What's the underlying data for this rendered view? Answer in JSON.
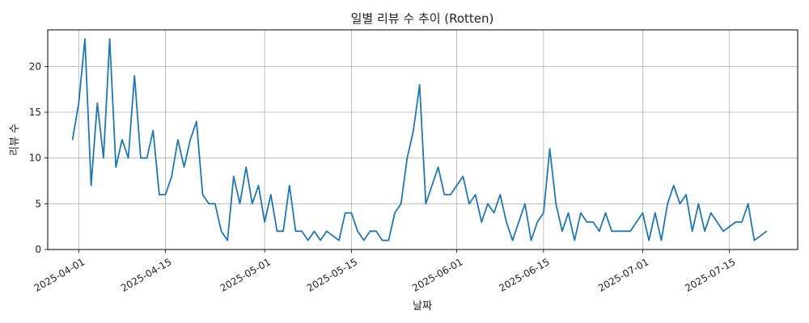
{
  "chart_data": {
    "type": "line",
    "title": "일별 리뷰 수 추이 (Rotten)",
    "xlabel": "날짜",
    "ylabel": "리뷰 수",
    "grid": true,
    "line_color": "#1f77b4",
    "x_ticks": [
      "2025-04-01",
      "2025-04-15",
      "2025-05-01",
      "2025-05-15",
      "2025-06-01",
      "2025-06-15",
      "2025-07-01",
      "2025-07-15"
    ],
    "y_ticks": [
      0,
      5,
      10,
      15,
      20
    ],
    "xlim": [
      "2025-03-27",
      "2025-07-26"
    ],
    "ylim": [
      0,
      24
    ],
    "series": [
      {
        "name": "",
        "points": [
          [
            "2025-03-31",
            12
          ],
          [
            "2025-04-01",
            16
          ],
          [
            "2025-04-02",
            23
          ],
          [
            "2025-04-03",
            7
          ],
          [
            "2025-04-04",
            16
          ],
          [
            "2025-04-05",
            10
          ],
          [
            "2025-04-06",
            23
          ],
          [
            "2025-04-07",
            9
          ],
          [
            "2025-04-08",
            12
          ],
          [
            "2025-04-09",
            10
          ],
          [
            "2025-04-10",
            19
          ],
          [
            "2025-04-11",
            10
          ],
          [
            "2025-04-12",
            10
          ],
          [
            "2025-04-13",
            13
          ],
          [
            "2025-04-14",
            6
          ],
          [
            "2025-04-15",
            6
          ],
          [
            "2025-04-16",
            8
          ],
          [
            "2025-04-17",
            12
          ],
          [
            "2025-04-18",
            9
          ],
          [
            "2025-04-19",
            12
          ],
          [
            "2025-04-20",
            14
          ],
          [
            "2025-04-21",
            6
          ],
          [
            "2025-04-22",
            5
          ],
          [
            "2025-04-23",
            5
          ],
          [
            "2025-04-24",
            2
          ],
          [
            "2025-04-25",
            1
          ],
          [
            "2025-04-26",
            8
          ],
          [
            "2025-04-27",
            5
          ],
          [
            "2025-04-28",
            9
          ],
          [
            "2025-04-29",
            5
          ],
          [
            "2025-04-30",
            7
          ],
          [
            "2025-05-01",
            3
          ],
          [
            "2025-05-02",
            6
          ],
          [
            "2025-05-03",
            2
          ],
          [
            "2025-05-04",
            2
          ],
          [
            "2025-05-05",
            7
          ],
          [
            "2025-05-06",
            2
          ],
          [
            "2025-05-07",
            2
          ],
          [
            "2025-05-08",
            1
          ],
          [
            "2025-05-09",
            2
          ],
          [
            "2025-05-10",
            1
          ],
          [
            "2025-05-11",
            2
          ],
          [
            "2025-05-13",
            1
          ],
          [
            "2025-05-14",
            4
          ],
          [
            "2025-05-15",
            4
          ],
          [
            "2025-05-16",
            2
          ],
          [
            "2025-05-17",
            1
          ],
          [
            "2025-05-18",
            2
          ],
          [
            "2025-05-19",
            2
          ],
          [
            "2025-05-20",
            1
          ],
          [
            "2025-05-21",
            1
          ],
          [
            "2025-05-22",
            4
          ],
          [
            "2025-05-23",
            5
          ],
          [
            "2025-05-24",
            10
          ],
          [
            "2025-05-25",
            13
          ],
          [
            "2025-05-26",
            18
          ],
          [
            "2025-05-27",
            5
          ],
          [
            "2025-05-29",
            9
          ],
          [
            "2025-05-30",
            6
          ],
          [
            "2025-05-31",
            6
          ],
          [
            "2025-06-02",
            8
          ],
          [
            "2025-06-03",
            5
          ],
          [
            "2025-06-04",
            6
          ],
          [
            "2025-06-05",
            3
          ],
          [
            "2025-06-06",
            5
          ],
          [
            "2025-06-07",
            4
          ],
          [
            "2025-06-08",
            6
          ],
          [
            "2025-06-09",
            3
          ],
          [
            "2025-06-10",
            1
          ],
          [
            "2025-06-12",
            5
          ],
          [
            "2025-06-13",
            1
          ],
          [
            "2025-06-14",
            3
          ],
          [
            "2025-06-15",
            4
          ],
          [
            "2025-06-16",
            11
          ],
          [
            "2025-06-17",
            5
          ],
          [
            "2025-06-18",
            2
          ],
          [
            "2025-06-19",
            4
          ],
          [
            "2025-06-20",
            1
          ],
          [
            "2025-06-21",
            4
          ],
          [
            "2025-06-22",
            3
          ],
          [
            "2025-06-23",
            3
          ],
          [
            "2025-06-24",
            2
          ],
          [
            "2025-06-25",
            4
          ],
          [
            "2025-06-26",
            2
          ],
          [
            "2025-06-29",
            2
          ],
          [
            "2025-07-01",
            4
          ],
          [
            "2025-07-02",
            1
          ],
          [
            "2025-07-03",
            4
          ],
          [
            "2025-07-04",
            1
          ],
          [
            "2025-07-05",
            5
          ],
          [
            "2025-07-06",
            7
          ],
          [
            "2025-07-07",
            5
          ],
          [
            "2025-07-08",
            6
          ],
          [
            "2025-07-09",
            2
          ],
          [
            "2025-07-10",
            5
          ],
          [
            "2025-07-11",
            2
          ],
          [
            "2025-07-12",
            4
          ],
          [
            "2025-07-14",
            2
          ],
          [
            "2025-07-16",
            3
          ],
          [
            "2025-07-17",
            3
          ],
          [
            "2025-07-18",
            5
          ],
          [
            "2025-07-19",
            1
          ],
          [
            "2025-07-21",
            2
          ]
        ]
      }
    ]
  }
}
